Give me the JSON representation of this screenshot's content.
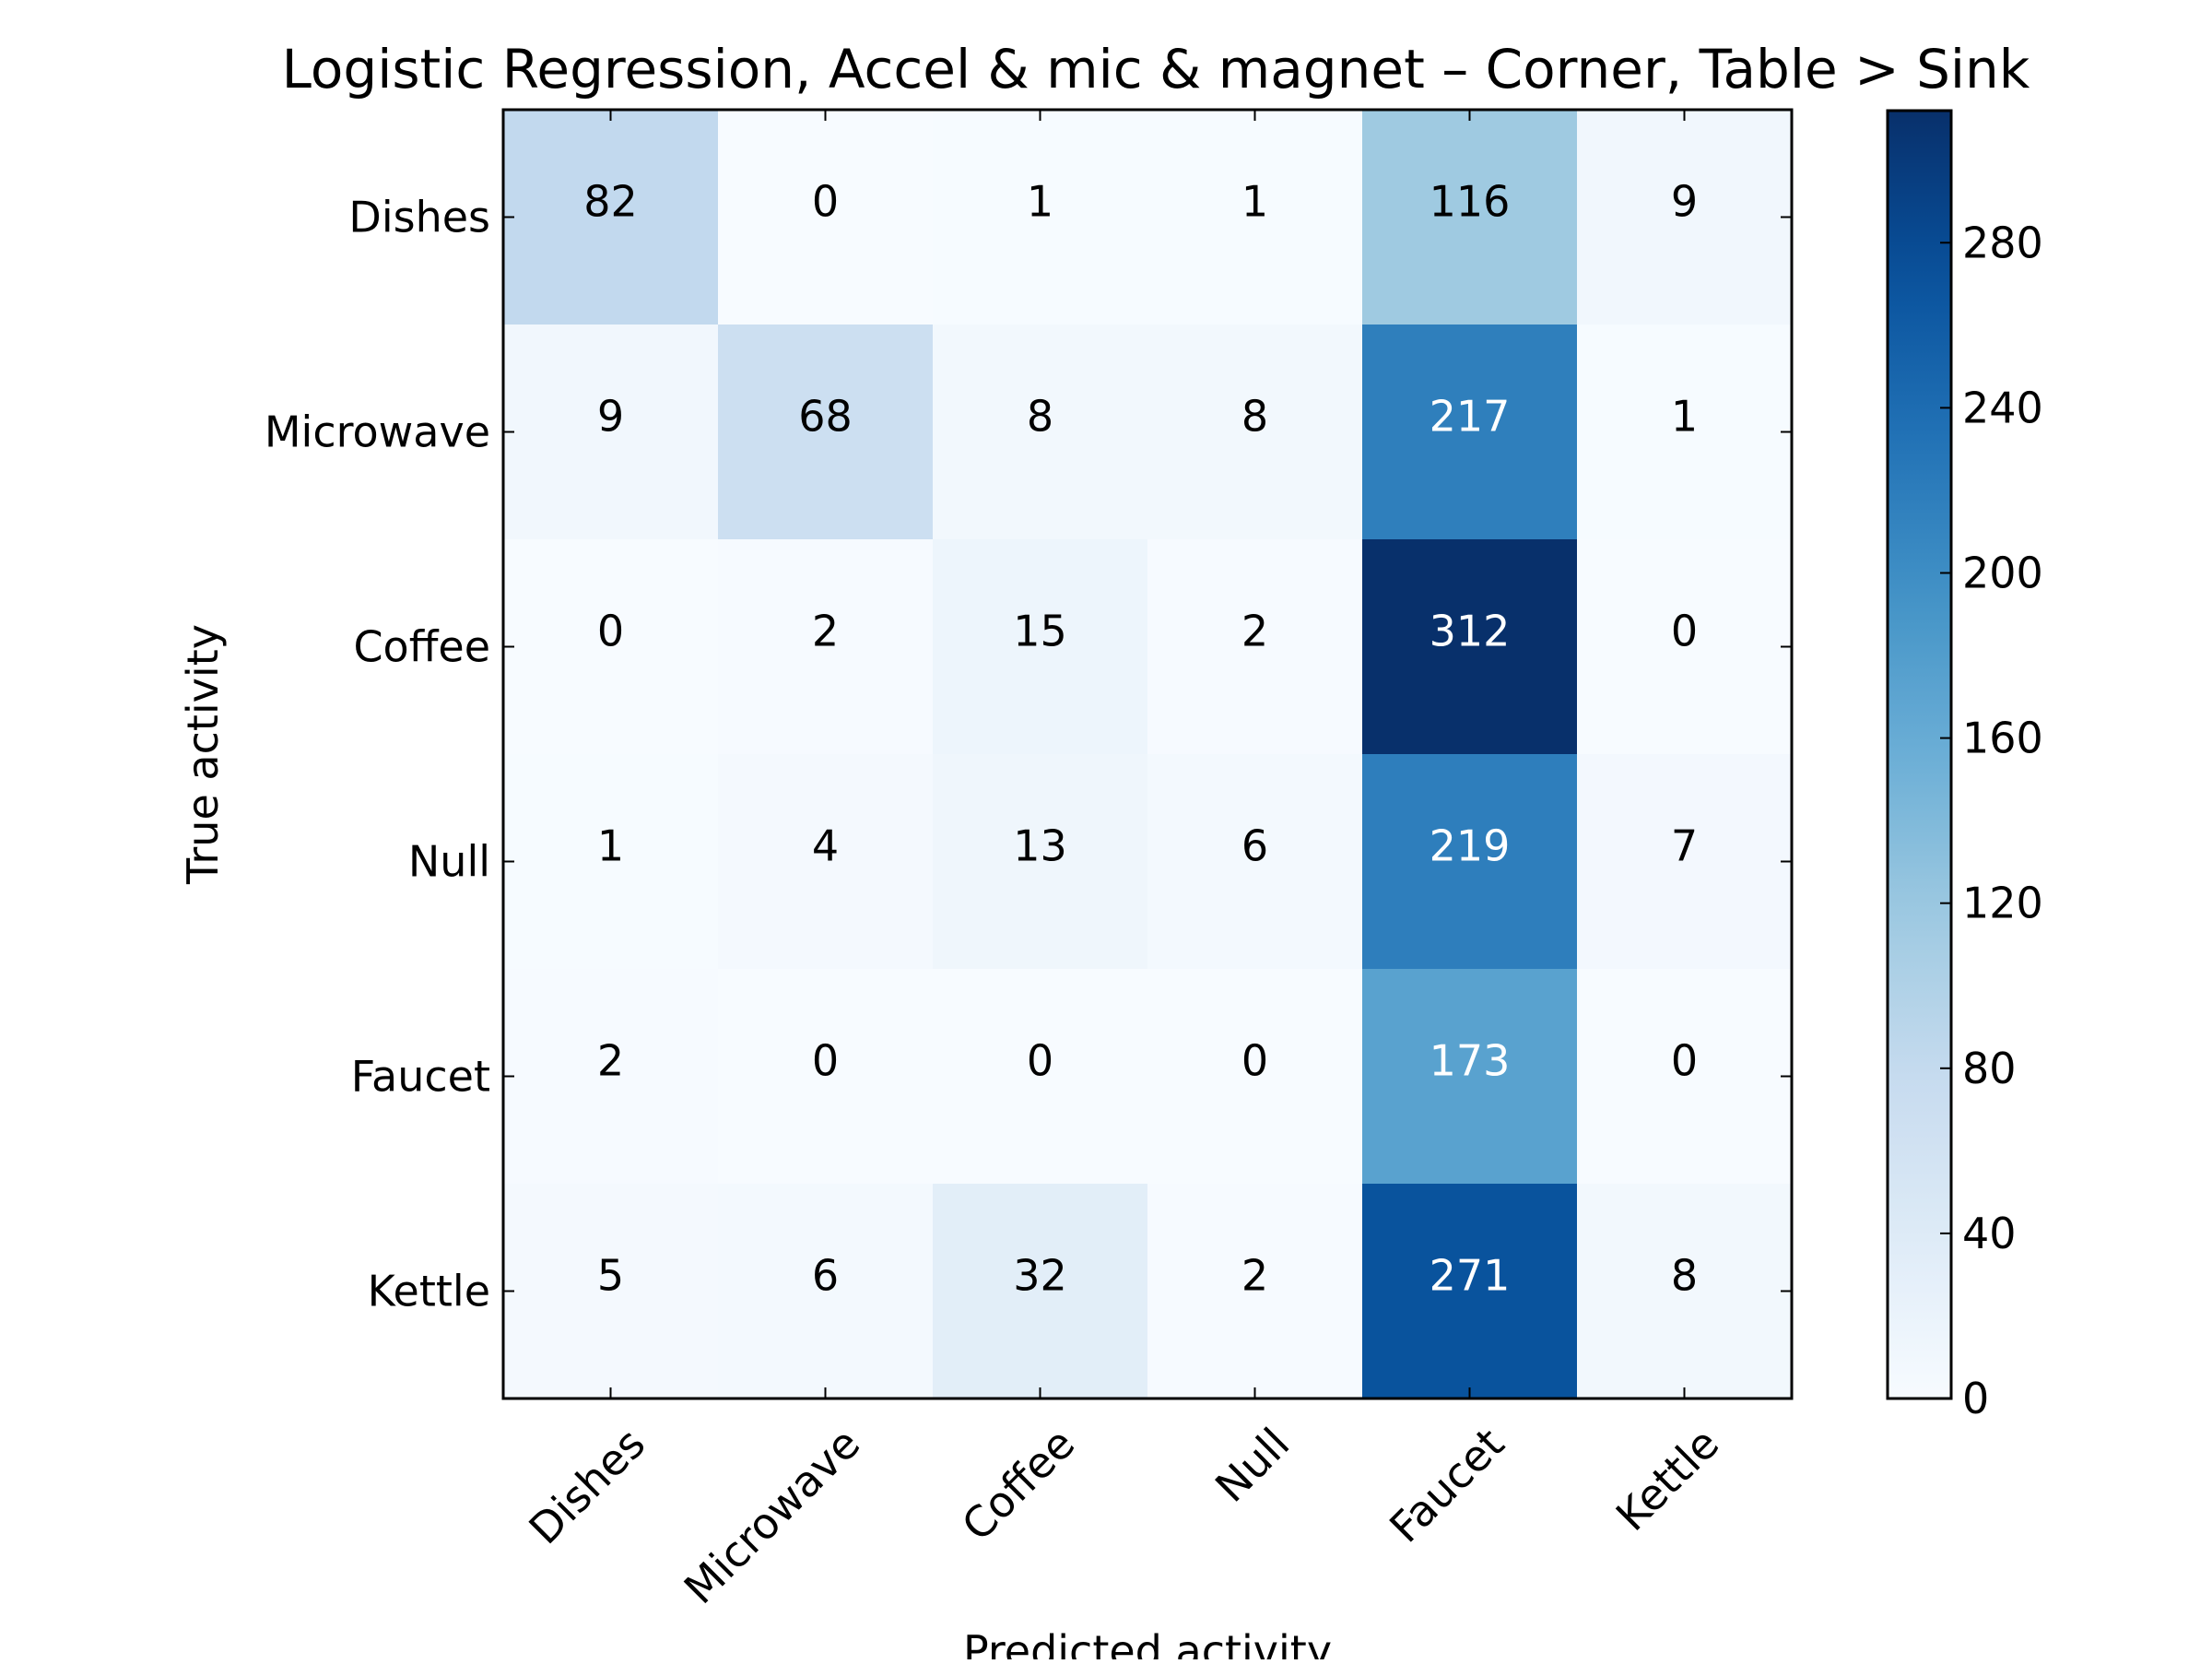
{
  "chart_data": {
    "type": "heatmap",
    "title": "Logistic Regression, Accel & mic & magnet – Corner, Table > Sink",
    "xlabel": "Predicted activity",
    "ylabel": "True activity",
    "x_categories": [
      "Dishes",
      "Microwave",
      "Coffee",
      "Null",
      "Faucet",
      "Kettle"
    ],
    "y_categories": [
      "Dishes",
      "Microwave",
      "Coffee",
      "Null",
      "Faucet",
      "Kettle"
    ],
    "values": [
      [
        82,
        0,
        1,
        1,
        116,
        9
      ],
      [
        9,
        68,
        8,
        8,
        217,
        1
      ],
      [
        0,
        2,
        15,
        2,
        312,
        0
      ],
      [
        1,
        4,
        13,
        6,
        219,
        7
      ],
      [
        2,
        0,
        0,
        0,
        173,
        0
      ],
      [
        5,
        6,
        32,
        2,
        271,
        8
      ]
    ],
    "colormap": "Blues",
    "colorbar": {
      "range": [
        0,
        312
      ],
      "ticks": [
        0,
        40,
        80,
        120,
        160,
        200,
        240,
        280
      ]
    },
    "grid": false
  }
}
